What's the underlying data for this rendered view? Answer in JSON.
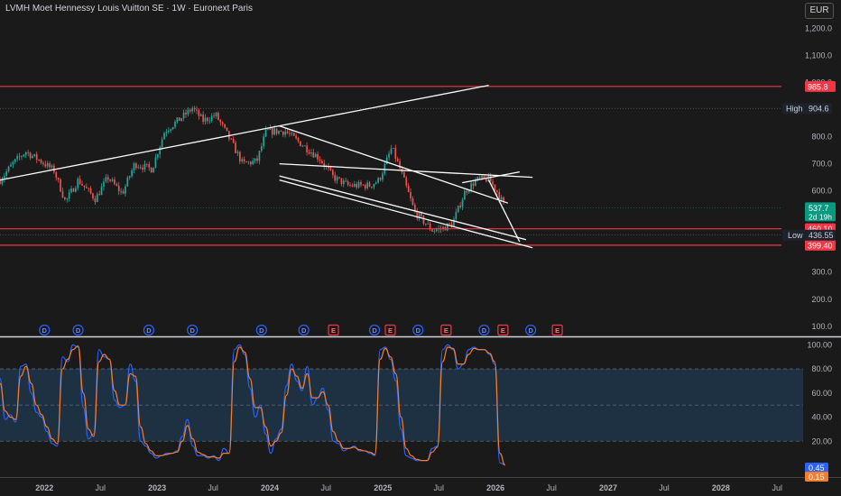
{
  "header": {
    "title": "LVMH Moet Hennessy Louis Vuitton SE · 1W · Euronext Paris",
    "currency": "EUR"
  },
  "chart_data": [
    {
      "type": "candlestick",
      "x_axis": {
        "tick_labels": [
          "2022",
          "Jul",
          "2023",
          "Jul",
          "2024",
          "Jul",
          "2025",
          "Jul",
          "2026",
          "Jul",
          "2027",
          "Jul",
          "2028",
          "Jul"
        ],
        "tick_dates": [
          "2022-01-01",
          "2022-07-01",
          "2023-01-01",
          "2023-07-01",
          "2024-01-01",
          "2024-07-01",
          "2025-01-01",
          "2025-07-01",
          "2026-01-01",
          "2026-07-01",
          "2027-01-01",
          "2027-07-01",
          "2028-01-01",
          "2028-07-01"
        ],
        "range": [
          "2021-08-10",
          "2028-07-15"
        ]
      },
      "y_axis": {
        "tick_labels": [
          "1,200.0",
          "1,100.0",
          "1,000.0",
          "900.0",
          "800.0",
          "700.0",
          "600.0",
          "500.0",
          "400.0",
          "300.0",
          "200.0",
          "100.0"
        ],
        "tick_values": [
          1200,
          1100,
          1000,
          900,
          800,
          700,
          600,
          500,
          400,
          300,
          200,
          100
        ],
        "range": [
          66,
          1305
        ]
      },
      "series_points": [
        [
          "2021-08-10",
          640
        ],
        [
          "2021-09-20",
          700
        ],
        [
          "2021-11-01",
          745
        ],
        [
          "2021-12-20",
          710
        ],
        [
          "2022-02-01",
          675
        ],
        [
          "2022-03-10",
          560
        ],
        [
          "2022-04-20",
          640
        ],
        [
          "2022-06-15",
          570
        ],
        [
          "2022-07-25",
          650
        ],
        [
          "2022-09-10",
          590
        ],
        [
          "2022-10-20",
          700
        ],
        [
          "2022-12-15",
          680
        ],
        [
          "2023-01-25",
          820
        ],
        [
          "2023-03-10",
          860
        ],
        [
          "2023-04-25",
          905
        ],
        [
          "2023-05-30",
          860
        ],
        [
          "2023-07-10",
          880
        ],
        [
          "2023-08-20",
          800
        ],
        [
          "2023-10-05",
          700
        ],
        [
          "2023-11-20",
          710
        ],
        [
          "2023-12-20",
          820
        ],
        [
          "2024-02-20",
          820
        ],
        [
          "2024-04-10",
          775
        ],
        [
          "2024-06-10",
          720
        ],
        [
          "2024-07-25",
          650
        ],
        [
          "2024-09-10",
          620
        ],
        [
          "2024-10-20",
          620
        ],
        [
          "2024-11-20",
          620
        ],
        [
          "2024-12-20",
          640
        ],
        [
          "2025-01-30",
          760
        ],
        [
          "2025-03-01",
          670
        ],
        [
          "2025-04-15",
          520
        ],
        [
          "2025-06-10",
          455
        ],
        [
          "2025-07-10",
          460
        ],
        [
          "2025-08-15",
          480
        ],
        [
          "2025-09-25",
          600
        ],
        [
          "2025-11-01",
          640
        ],
        [
          "2025-12-10",
          645
        ],
        [
          "2026-01-05",
          600
        ],
        [
          "2026-02-01",
          537.7
        ]
      ],
      "horizontal_levels": [
        {
          "value": 985.8,
          "label": "985.8"
        },
        {
          "value": 460.1,
          "label": "460.10"
        },
        {
          "value": 399.4,
          "label": "399.40"
        }
      ],
      "high": {
        "label": "High",
        "value": "904.6",
        "y": 904.6
      },
      "low": {
        "label": "Low",
        "value": "436.55",
        "y": 436.55
      },
      "last_price": {
        "value": "537.7",
        "countdown": "2d 19h",
        "y": 537.7
      },
      "trendlines": [
        {
          "from": [
            "2021-08-10",
            640
          ],
          "to": [
            "2025-12-10",
            990
          ]
        },
        {
          "from": [
            "2024-02-01",
            840
          ],
          "to": [
            "2026-02-10",
            555
          ]
        },
        {
          "from": [
            "2024-02-01",
            700
          ],
          "to": [
            "2026-05-01",
            650
          ]
        },
        {
          "from": [
            "2024-02-01",
            655
          ],
          "to": [
            "2026-04-10",
            420
          ]
        },
        {
          "from": [
            "2024-02-01",
            640
          ],
          "to": [
            "2026-05-01",
            390
          ]
        },
        {
          "from": [
            "2025-09-15",
            630
          ],
          "to": [
            "2026-03-20",
            670
          ]
        },
        {
          "from": [
            "2025-12-10",
            640
          ],
          "to": [
            "2026-03-20",
            412
          ]
        }
      ],
      "event_markers": [
        {
          "type": "D",
          "date": "2022-01-01"
        },
        {
          "type": "D",
          "date": "2022-04-20"
        },
        {
          "type": "D",
          "date": "2022-12-05"
        },
        {
          "type": "D",
          "date": "2023-04-25"
        },
        {
          "type": "D",
          "date": "2023-12-05"
        },
        {
          "type": "D",
          "date": "2024-04-20"
        },
        {
          "type": "E",
          "date": "2024-07-25"
        },
        {
          "type": "D",
          "date": "2024-12-05"
        },
        {
          "type": "E",
          "date": "2025-01-25"
        },
        {
          "type": "D",
          "date": "2025-04-25"
        },
        {
          "type": "E",
          "date": "2025-07-25"
        },
        {
          "type": "D",
          "date": "2025-11-25"
        },
        {
          "type": "E",
          "date": "2026-01-25"
        },
        {
          "type": "D",
          "date": "2026-04-25"
        },
        {
          "type": "E",
          "date": "2026-07-20"
        }
      ]
    },
    {
      "type": "line",
      "indicator": "stochastic",
      "y_axis": {
        "tick_labels": [
          "100.00",
          "80.00",
          "60.00",
          "40.00",
          "20.00"
        ],
        "tick_values": [
          100,
          80,
          60,
          40,
          20
        ],
        "range": [
          -3,
          104
        ]
      },
      "band": [
        20,
        80
      ],
      "midline": 50,
      "series": [
        {
          "values": [
            72,
            38,
            42,
            36,
            82,
            84,
            60,
            44,
            40,
            28,
            18,
            16,
            90,
            86,
            100,
            98,
            48,
            22,
            26,
            96,
            90,
            88,
            54,
            48,
            50,
            84,
            70,
            20,
            16,
            10,
            6,
            8,
            10,
            10,
            12,
            24,
            38,
            16,
            8,
            8,
            6,
            8,
            4,
            14,
            10,
            96,
            100,
            92,
            64,
            40,
            50,
            26,
            10,
            22,
            30,
            66,
            84,
            70,
            62,
            82,
            50,
            56,
            64,
            46,
            20,
            18,
            12,
            14,
            16,
            12,
            12,
            10,
            8,
            96,
            98,
            88,
            70,
            30,
            8,
            6,
            4,
            4,
            4,
            14,
            16,
            96,
            100,
            96,
            80,
            84,
            96,
            98,
            96,
            96,
            92,
            84,
            2,
            0.45
          ],
          "color": "#2962ff"
        },
        {
          "values": [
            68,
            45,
            40,
            38,
            74,
            82,
            68,
            50,
            42,
            32,
            22,
            18,
            80,
            88,
            96,
            99,
            60,
            30,
            24,
            86,
            92,
            88,
            62,
            50,
            50,
            76,
            74,
            32,
            18,
            12,
            8,
            8,
            9,
            10,
            11,
            20,
            33,
            22,
            11,
            9,
            7,
            7,
            6,
            10,
            10,
            86,
            98,
            94,
            72,
            48,
            48,
            32,
            16,
            20,
            27,
            58,
            80,
            74,
            64,
            76,
            56,
            56,
            61,
            50,
            28,
            20,
            14,
            14,
            15,
            13,
            12,
            11,
            9,
            88,
            97,
            90,
            76,
            40,
            14,
            8,
            5,
            4,
            4,
            11,
            15,
            86,
            98,
            97,
            84,
            84,
            92,
            97,
            96,
            96,
            93,
            86,
            10,
            0.15
          ],
          "color": "#f57c2a"
        }
      ],
      "last_values": [
        {
          "value": "0.45",
          "color": "#2962ff"
        },
        {
          "value": "0.15",
          "color": "#f57c2a"
        }
      ]
    }
  ],
  "colors": {
    "background": "#1a1a1a",
    "up": "#26a69a",
    "down": "#ef5350",
    "level_line": "#f23645",
    "trendline": "#ffffff",
    "dividend_marker": "#2962ff",
    "earnings_marker": "#f23645",
    "stoch_band": "#1f3a52",
    "last_price_tag": "#089981"
  }
}
